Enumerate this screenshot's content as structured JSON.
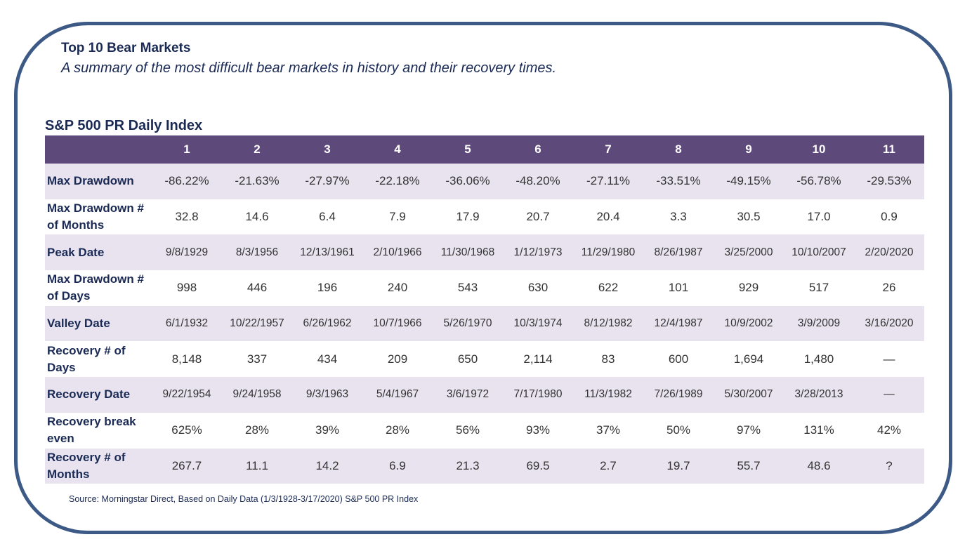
{
  "title": "Top 10 Bear Markets",
  "subtitle": "A summary of the most difficult bear markets in history and their recovery times.",
  "table_title": "S&P 500 PR Daily Index",
  "columns": [
    "1",
    "2",
    "3",
    "4",
    "5",
    "6",
    "7",
    "8",
    "9",
    "10",
    "11"
  ],
  "rows": [
    {
      "label": "Max Drawdown",
      "small": false,
      "values": [
        "-86.22%",
        "-21.63%",
        "-27.97%",
        "-22.18%",
        "-36.06%",
        "-48.20%",
        "-27.11%",
        "-33.51%",
        "-49.15%",
        "-56.78%",
        "-29.53%"
      ]
    },
    {
      "label": "Max Drawdown # of Months",
      "small": false,
      "values": [
        "32.8",
        "14.6",
        "6.4",
        "7.9",
        "17.9",
        "20.7",
        "20.4",
        "3.3",
        "30.5",
        "17.0",
        "0.9"
      ]
    },
    {
      "label": "Peak Date",
      "small": true,
      "values": [
        "9/8/1929",
        "8/3/1956",
        "12/13/1961",
        "2/10/1966",
        "11/30/1968",
        "1/12/1973",
        "11/29/1980",
        "8/26/1987",
        "3/25/2000",
        "10/10/2007",
        "2/20/2020"
      ]
    },
    {
      "label": "Max Drawdown # of Days",
      "small": false,
      "values": [
        "998",
        "446",
        "196",
        "240",
        "543",
        "630",
        "622",
        "101",
        "929",
        "517",
        "26"
      ]
    },
    {
      "label": "Valley Date",
      "small": true,
      "values": [
        "6/1/1932",
        "10/22/1957",
        "6/26/1962",
        "10/7/1966",
        "5/26/1970",
        "10/3/1974",
        "8/12/1982",
        "12/4/1987",
        "10/9/2002",
        "3/9/2009",
        "3/16/2020"
      ]
    },
    {
      "label": "Recovery # of Days",
      "small": false,
      "values": [
        "8,148",
        "337",
        "434",
        "209",
        "650",
        "2,114",
        "83",
        "600",
        "1,694",
        "1,480",
        "—"
      ]
    },
    {
      "label": "Recovery Date",
      "small": true,
      "values": [
        "9/22/1954",
        "9/24/1958",
        "9/3/1963",
        "5/4/1967",
        "3/6/1972",
        "7/17/1980",
        "11/3/1982",
        "7/26/1989",
        "5/30/2007",
        "3/28/2013",
        "—"
      ]
    },
    {
      "label": "Recovery break even",
      "small": false,
      "values": [
        "625%",
        "28%",
        "39%",
        "28%",
        "56%",
        "93%",
        "37%",
        "50%",
        "97%",
        "131%",
        "42%"
      ]
    },
    {
      "label": "Recovery # of Months",
      "small": false,
      "values": [
        "267.7",
        "11.1",
        "14.2",
        "6.9",
        "21.3",
        "69.5",
        "2.7",
        "19.7",
        "55.7",
        "48.6",
        "?"
      ]
    }
  ],
  "source": "Source: Morningstar Direct, Based on Daily Data (1/3/1928-3/17/2020) S&P 500 PR Index",
  "colors": {
    "header_bg": "#5e4a7a",
    "band_bg": "#e8e3ef",
    "title_text": "#1a2a55",
    "frame_border": "#3c5a85"
  }
}
